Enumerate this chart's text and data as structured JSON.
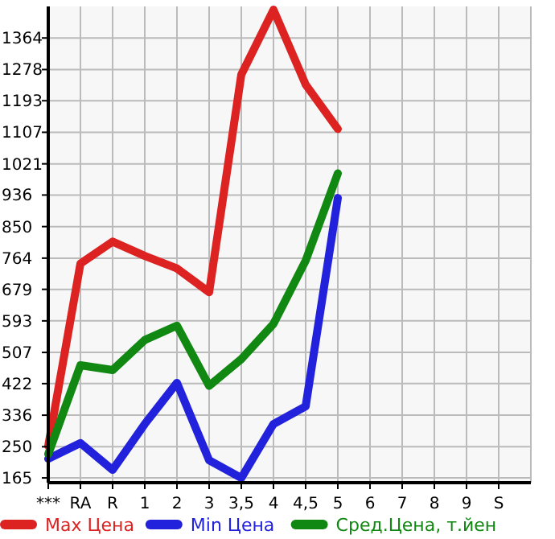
{
  "chart_data": {
    "type": "line",
    "categories": [
      "***",
      "RA",
      "R",
      "1",
      "2",
      "3",
      "3,5",
      "4",
      "4,5",
      "5",
      "6",
      "7",
      "8",
      "9",
      "S"
    ],
    "ylim": [
      152,
      1450
    ],
    "yticks": [
      165,
      250,
      336,
      422,
      507,
      593,
      679,
      764,
      850,
      936,
      1021,
      1107,
      1193,
      1278,
      1364
    ],
    "grid": true,
    "legend": "bottom",
    "marker": "none",
    "line_style": "solid",
    "series": [
      {
        "name": "Max Цена",
        "color": "#dd2222",
        "values": [
          252,
          749,
          809,
          770,
          736,
          671,
          1264,
          1441,
          1237,
          1116,
          null,
          null,
          null,
          null,
          null
        ]
      },
      {
        "name": "Min Цена",
        "color": "#2222dd",
        "values": [
          217,
          260,
          187,
          312,
          424,
          213,
          165,
          312,
          360,
          928,
          null,
          null,
          null,
          null,
          null
        ]
      },
      {
        "name": "Сред.Цена, т.йен",
        "color": "#118811",
        "values": [
          230,
          472,
          459,
          541,
          580,
          416,
          489,
          585,
          757,
          995,
          null,
          null,
          null,
          null,
          null
        ]
      }
    ]
  }
}
